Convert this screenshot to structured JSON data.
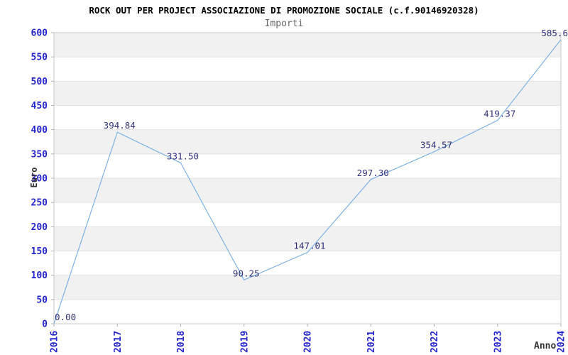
{
  "chart_data": {
    "type": "line",
    "title": "ROCK OUT PER PROJECT ASSOCIAZIONE DI PROMOZIONE SOCIALE (c.f.90146920328)",
    "subtitle": "Importi",
    "xlabel": "Anno",
    "ylabel": "Euro",
    "categories": [
      "2016",
      "2017",
      "2018",
      "2019",
      "2020",
      "2021",
      "2022",
      "2023",
      "2024"
    ],
    "values": [
      0.0,
      394.84,
      331.5,
      90.25,
      147.01,
      297.3,
      354.57,
      419.37,
      585.6
    ],
    "point_labels": [
      "0.00",
      "394.84",
      "331.50",
      "90.25",
      "147.01",
      "297.30",
      "354.57",
      "419.37",
      "585.6"
    ],
    "ylim": [
      0,
      600
    ],
    "yticks": [
      0,
      50,
      100,
      150,
      200,
      250,
      300,
      350,
      400,
      450,
      500,
      550,
      600
    ],
    "grid": "horizontal gridlines with alternating shaded bands",
    "legend": "none",
    "colors": {
      "line": "#7fb2e5",
      "tick_label": "#2424cc",
      "point_label": "#32327d",
      "band": "#f1f1f1",
      "gridline": "#e2e2e2",
      "frame": "#c8c8c8",
      "tick_mark": "#b0b0b0",
      "axis_title": "#333333",
      "title": "#000000",
      "subtitle": "#666666"
    }
  }
}
